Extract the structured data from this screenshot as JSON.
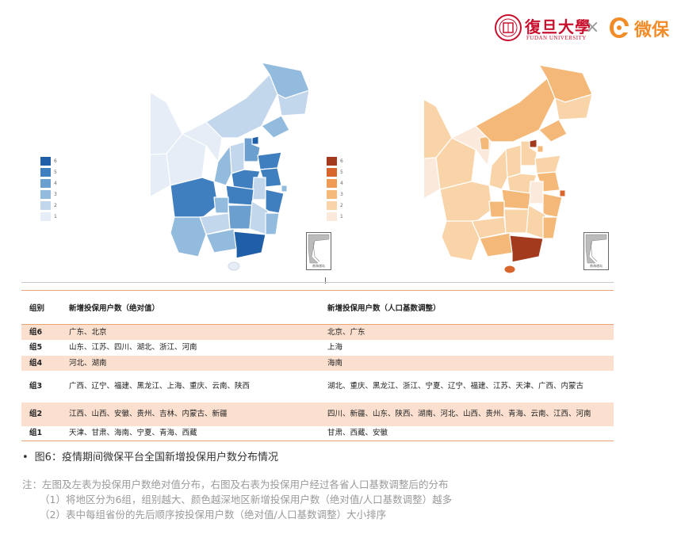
{
  "header": {
    "fudan_name": "復旦大學",
    "fudan_english": "FUDAN UNIVERSITY",
    "cross": "×",
    "weibao_name": "微保",
    "fudan_seal_color": "#c8102e",
    "weibao_color": "#f28c28"
  },
  "legend_left": {
    "labels": [
      "6",
      "5",
      "4",
      "3",
      "2",
      "1"
    ],
    "colors": [
      "#1f5fa8",
      "#3f7fc0",
      "#6b9fcf",
      "#92bbdd",
      "#c2d6ec",
      "#e6edf6"
    ]
  },
  "legend_right": {
    "labels": [
      "6",
      "5",
      "4",
      "3",
      "2",
      "1"
    ],
    "colors": [
      "#a33a1e",
      "#d8652c",
      "#ef9a55",
      "#f4b878",
      "#f8d4a8",
      "#fbeadb"
    ]
  },
  "inset_caption": "南海诸岛",
  "table": {
    "headers": [
      "组别",
      "新增投保用户数（绝对值）",
      "新增投保用户数（人口基数调整）"
    ],
    "rows": [
      [
        "组6",
        "广东、北京",
        "北京、广东"
      ],
      [
        "组5",
        "山东、江苏、四川、湖北、浙江、河南",
        "上海"
      ],
      [
        "组4",
        "河北、湖南",
        "海南"
      ],
      [
        "组3",
        "广西、辽宁、福建、黑龙江、上海、重庆、云南、陕西",
        "湖北、重庆、黑龙江、浙江、宁夏、辽宁、福建、江苏、天津、广西、内蒙古"
      ],
      [
        "组2",
        "江西、山西、安徽、贵州、吉林、内蒙古、新疆",
        "四川、新疆、山东、陕西、湖南、河北、山西、贵州、青海、云南、江西、河南"
      ],
      [
        "组1",
        "天津、甘肃、海南、宁夏、青海、西藏",
        "甘肃、西藏、安徽"
      ]
    ]
  },
  "caption": {
    "bullet": "•",
    "text": "图6：疫情期间微保平台全国新增投保用户数分布情况"
  },
  "notes": [
    "注：左图及左表为投保用户数绝对值分布，右图及右表为投保用户经过各省人口基数调整后的分布",
    "（1）将地区分为6组，组别越大、颜色越深地区新增投保用户数（绝对值/人口基数调整）越多",
    "（2）表中每组省份的先后顺序按投保用户数（绝对值/人口基数调整）大小排序"
  ]
}
